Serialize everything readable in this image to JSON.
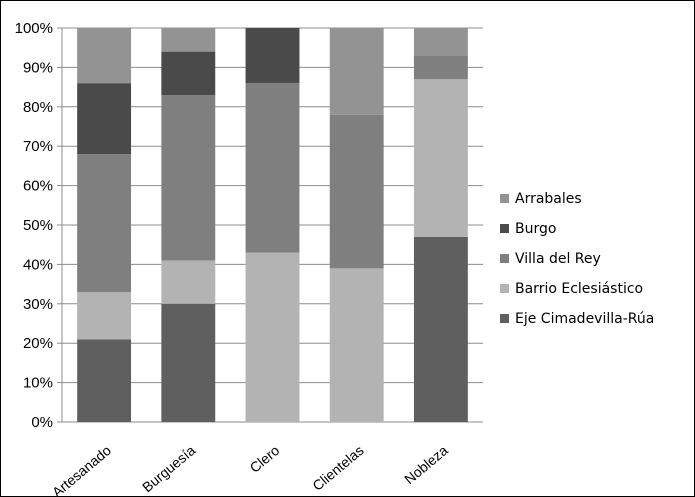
{
  "chart_data": {
    "type": "bar",
    "stacked": true,
    "percent": true,
    "categories": [
      "Artesanado",
      "Burguesía",
      "Clero",
      "Clientelas",
      "Nobleza"
    ],
    "y_ticks": [
      "0%",
      "10%",
      "20%",
      "30%",
      "40%",
      "50%",
      "60%",
      "70%",
      "80%",
      "90%",
      "100%"
    ],
    "ylim": [
      0,
      100
    ],
    "grid": true,
    "legend_position": "right",
    "series": [
      {
        "name": "Eje Cimadevilla-Rúa",
        "color": "#5f5f5f",
        "values": [
          21,
          30,
          0,
          0,
          47
        ]
      },
      {
        "name": "Barrio Eclesiástico",
        "color": "#b3b3b3",
        "values": [
          12,
          11,
          43,
          39,
          40
        ]
      },
      {
        "name": "Villa del Rey",
        "color": "#7f7f7f",
        "values": [
          35,
          42,
          43,
          39,
          6
        ]
      },
      {
        "name": "Burgo",
        "color": "#4a4a4a",
        "values": [
          18,
          11,
          14,
          0,
          0
        ]
      },
      {
        "name": "Arrabales",
        "color": "#939393",
        "values": [
          14,
          6,
          0,
          22,
          7
        ]
      }
    ]
  }
}
